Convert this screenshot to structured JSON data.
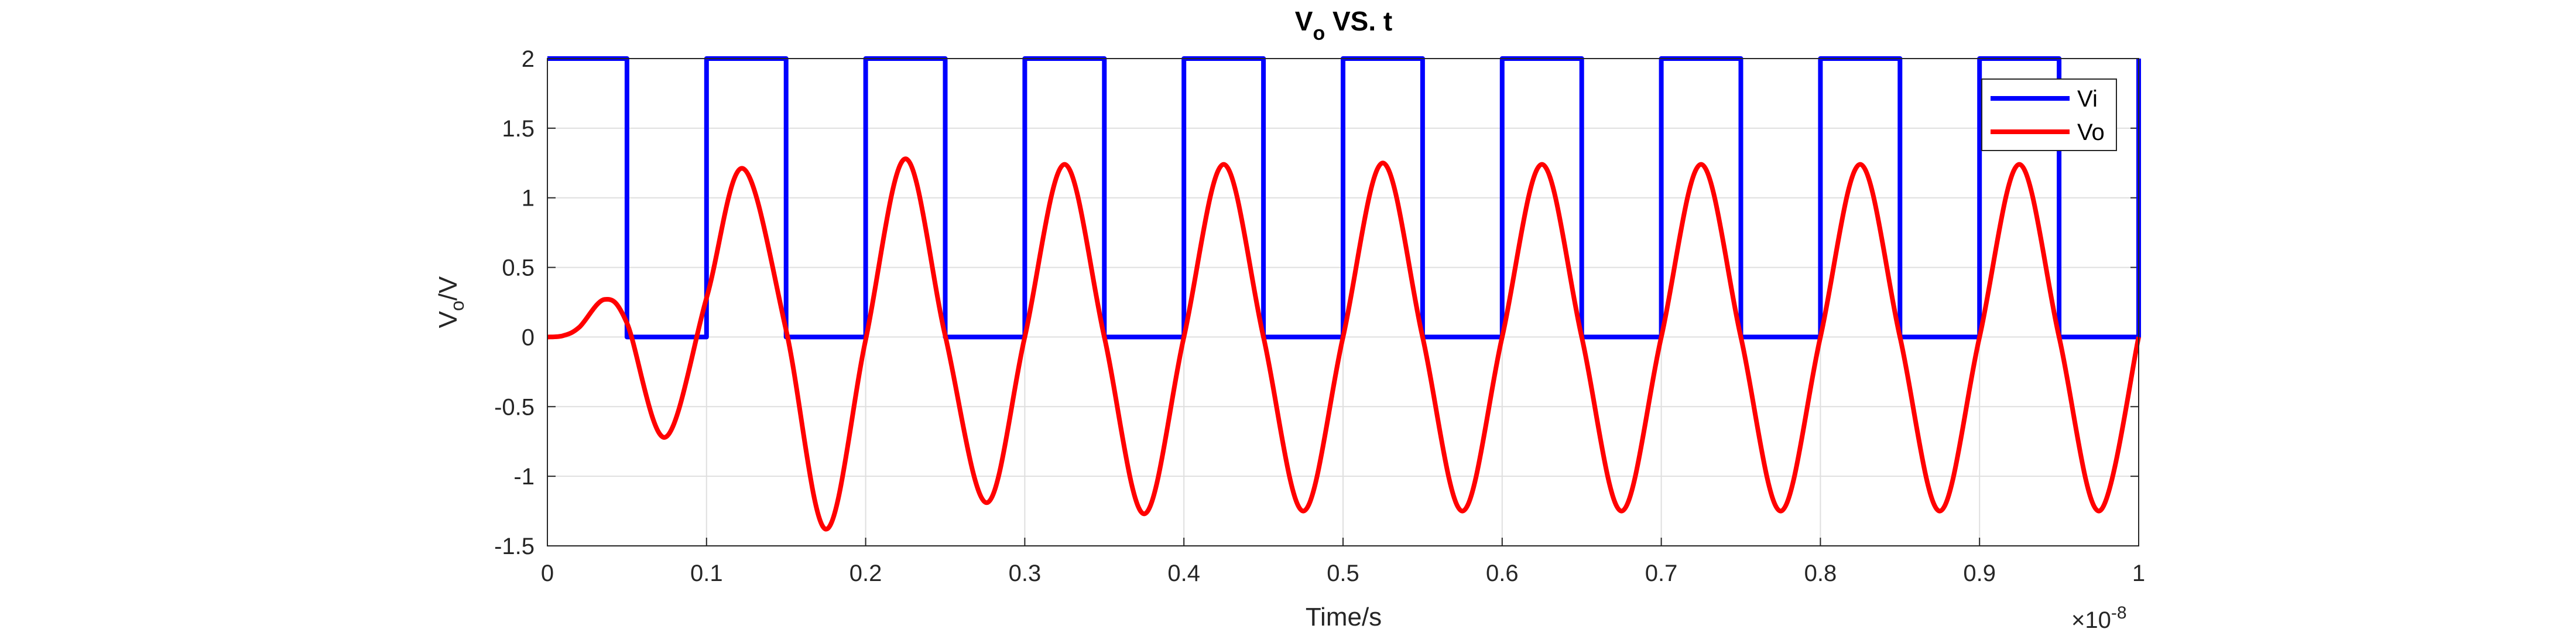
{
  "chart_data": {
    "type": "line",
    "title": {
      "main": "V",
      "sub": "o",
      "rest": " VS. t"
    },
    "xlabel": "Time/s",
    "ylabel": {
      "main": "V",
      "sub": "o",
      "rest": "/V"
    },
    "x_exponent": {
      "base": "×10",
      "power": "-8"
    },
    "xlim": [
      0,
      1
    ],
    "ylim": [
      -1.5,
      2
    ],
    "x_ticks": [
      0,
      0.1,
      0.2,
      0.3,
      0.4,
      0.5,
      0.6,
      0.7,
      0.8,
      0.9,
      1
    ],
    "x_tick_labels": [
      "0",
      "0.1",
      "0.2",
      "0.3",
      "0.4",
      "0.5",
      "0.6",
      "0.7",
      "0.8",
      "0.9",
      "1"
    ],
    "y_ticks": [
      -1.5,
      -1,
      -0.5,
      0,
      0.5,
      1,
      1.5,
      2
    ],
    "y_tick_labels": [
      "-1.5",
      "-1",
      "-0.5",
      "0",
      "0.5",
      "1",
      "1.5",
      "2"
    ],
    "grid": true,
    "legend": {
      "placement": "top-right"
    },
    "series": [
      {
        "name": "Vi",
        "color": "#0000ff",
        "style": "square-wave",
        "x": [
          0,
          0.05,
          0.05,
          0.1,
          0.1,
          0.15,
          0.15,
          0.2,
          0.2,
          0.25,
          0.25,
          0.3,
          0.3,
          0.35,
          0.35,
          0.4,
          0.4,
          0.45,
          0.45,
          0.5,
          0.5,
          0.55,
          0.55,
          0.6,
          0.6,
          0.65,
          0.65,
          0.7,
          0.7,
          0.75,
          0.75,
          0.8,
          0.8,
          0.85,
          0.85,
          0.9,
          0.9,
          0.95,
          0.95,
          1,
          1
        ],
        "y": [
          2,
          2,
          0,
          0,
          2,
          2,
          0,
          0,
          2,
          2,
          0,
          0,
          2,
          2,
          0,
          0,
          2,
          2,
          0,
          0,
          2,
          2,
          0,
          0,
          2,
          2,
          0,
          0,
          2,
          2,
          0,
          0,
          2,
          2,
          0,
          0,
          2,
          2,
          0,
          0,
          2
        ]
      },
      {
        "name": "Vo",
        "color": "#ff0000",
        "style": "smooth",
        "x": [
          0,
          0.01,
          0.02,
          0.036,
          0.05,
          0.074,
          0.1,
          0.123,
          0.15,
          0.175,
          0.2,
          0.225,
          0.25,
          0.276,
          0.3,
          0.325,
          0.35,
          0.375,
          0.4,
          0.425,
          0.45,
          0.475,
          0.5,
          0.525,
          0.55,
          0.575,
          0.6,
          0.625,
          0.65,
          0.675,
          0.7,
          0.725,
          0.75,
          0.775,
          0.8,
          0.825,
          0.85,
          0.875,
          0.9,
          0.925,
          0.95,
          0.975,
          1
        ],
        "y": [
          0,
          0.01,
          0.07,
          0.27,
          0.1,
          -0.72,
          0.28,
          1.21,
          0.05,
          -1.38,
          -0.02,
          1.28,
          0.01,
          -1.19,
          0.0,
          1.24,
          0.0,
          -1.27,
          0.0,
          1.24,
          0.0,
          -1.25,
          0.0,
          1.25,
          0.0,
          -1.25,
          0.0,
          1.24,
          0.0,
          -1.25,
          0.0,
          1.24,
          0.0,
          -1.25,
          0.0,
          1.24,
          0.0,
          -1.25,
          0.0,
          1.24,
          0.0,
          -1.25,
          0.0
        ]
      }
    ]
  }
}
